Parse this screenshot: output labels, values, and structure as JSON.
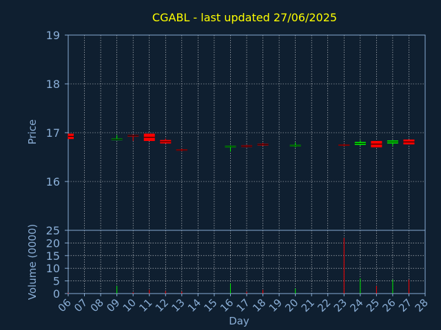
{
  "chart_data": {
    "type": "candlestick",
    "title": "CGABL - last updated 27/06/2025",
    "xlabel": "Day",
    "price_panel": {
      "ylabel": "Price",
      "ylim": [
        15,
        19
      ],
      "yticks": [
        16,
        17,
        18,
        19
      ],
      "grid": true
    },
    "volume_panel": {
      "ylabel": "Volume (0000)",
      "ylim": [
        0,
        25
      ],
      "yticks": [
        0,
        5,
        10,
        15,
        20,
        25
      ],
      "grid": true
    },
    "x_ticks": [
      "06",
      "07",
      "08",
      "09",
      "10",
      "11",
      "12",
      "13",
      "14",
      "15",
      "16",
      "17",
      "18",
      "19",
      "20",
      "21",
      "22",
      "23",
      "24",
      "25",
      "26",
      "27",
      "28"
    ],
    "candles": [
      {
        "day": "06",
        "open": 16.98,
        "close": 16.87,
        "high": 16.98,
        "low": 16.87,
        "volume": 0.3
      },
      {
        "day": "09",
        "open": 16.87,
        "close": 16.88,
        "high": 16.95,
        "low": 16.85,
        "volume": 3.0
      },
      {
        "day": "10",
        "open": 16.95,
        "close": 16.93,
        "high": 16.96,
        "low": 16.83,
        "volume": 0.5
      },
      {
        "day": "11",
        "open": 16.98,
        "close": 16.83,
        "high": 16.98,
        "low": 16.83,
        "volume": 1.5
      },
      {
        "day": "12",
        "open": 16.85,
        "close": 16.78,
        "high": 16.88,
        "low": 16.78,
        "volume": 1.0
      },
      {
        "day": "13",
        "open": 16.66,
        "close": 16.64,
        "high": 16.67,
        "low": 16.62,
        "volume": 0.8
      },
      {
        "day": "16",
        "open": 16.7,
        "close": 16.73,
        "high": 16.74,
        "low": 16.61,
        "volume": 4.0
      },
      {
        "day": "17",
        "open": 16.74,
        "close": 16.71,
        "high": 16.75,
        "low": 16.7,
        "volume": 0.7
      },
      {
        "day": "18",
        "open": 16.77,
        "close": 16.74,
        "high": 16.79,
        "low": 16.73,
        "volume": 1.5
      },
      {
        "day": "20",
        "open": 16.72,
        "close": 16.75,
        "high": 16.8,
        "low": 16.7,
        "volume": 2.0
      },
      {
        "day": "23",
        "open": 16.76,
        "close": 16.74,
        "high": 16.77,
        "low": 16.72,
        "volume": 22.0
      },
      {
        "day": "24",
        "open": 16.75,
        "close": 16.81,
        "high": 16.85,
        "low": 16.73,
        "volume": 6.0
      },
      {
        "day": "25",
        "open": 16.83,
        "close": 16.7,
        "high": 16.83,
        "low": 16.7,
        "volume": 3.0
      },
      {
        "day": "26",
        "open": 16.78,
        "close": 16.84,
        "high": 16.85,
        "low": 16.72,
        "volume": 5.5
      },
      {
        "day": "27",
        "open": 16.86,
        "close": 16.76,
        "high": 16.86,
        "low": 16.76,
        "volume": 5.5
      }
    ],
    "colors": {
      "background": "#0f1f30",
      "axis_text": "#8aaed6",
      "title": "#ffff00",
      "grid": "#ffffff",
      "frame": "#8aaed6",
      "up": "#00ee00",
      "down": "#ff0000",
      "label": "#000000"
    }
  }
}
